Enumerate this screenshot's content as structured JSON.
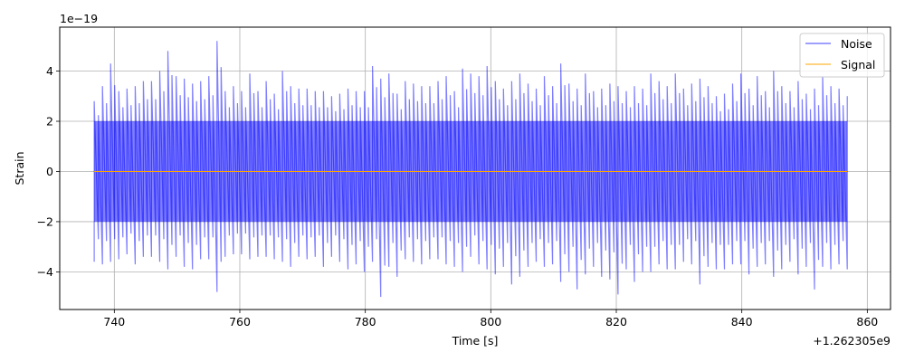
{
  "chart_data": {
    "type": "line",
    "xlabel": "Time [s]",
    "ylabel": "Strain",
    "x_offset_label": "+1.262305e9",
    "y_scale_label": "1e−19",
    "x_ticks": [
      740,
      760,
      780,
      800,
      820,
      840,
      860
    ],
    "x_tick_labels": [
      "740",
      "760",
      "780",
      "800",
      "820",
      "840",
      "860"
    ],
    "y_ticks": [
      -4,
      -2,
      0,
      2,
      4
    ],
    "y_tick_labels": [
      "−4",
      "−2",
      "0",
      "2",
      "4"
    ],
    "xlim": [
      731.3,
      863.7
    ],
    "ylim": [
      -5.5,
      5.75
    ],
    "grid": true,
    "legend_position": "top-right",
    "series": [
      {
        "name": "Noise",
        "color": "#0000ff",
        "opacity": 0.5,
        "x_range": [
          736.8,
          856.8
        ],
        "envelope_max": [
          2.8,
          3.4,
          4.3,
          3.2,
          3.3,
          3.4,
          3.6,
          3.6,
          4.0,
          4.8,
          3.8,
          3.7,
          3.5,
          3.6,
          3.8,
          5.2,
          3.2,
          3.4,
          3.2,
          3.9,
          3.2,
          3.6,
          3.1,
          4.0,
          3.4,
          3.3,
          3.3,
          3.2,
          3.2,
          3.0,
          3.1,
          3.3,
          3.2,
          3.2,
          4.2,
          3.7,
          3.9,
          3.1,
          3.6,
          3.5,
          3.4,
          3.4,
          3.6,
          3.8,
          3.2,
          4.1,
          3.9,
          3.8,
          4.2,
          3.6,
          3.3,
          3.6,
          3.9,
          3.5,
          3.3,
          3.8,
          3.4,
          4.3,
          3.5,
          3.3,
          3.9,
          3.2,
          3.3,
          3.5,
          3.4,
          3.2,
          3.4,
          3.3,
          3.9,
          3.6,
          3.4,
          3.9,
          3.3,
          3.5,
          3.7,
          3.4,
          3.0,
          3.1,
          3.5,
          3.9,
          3.3,
          3.8,
          3.2,
          4.0,
          3.4,
          3.2,
          3.6,
          3.1,
          3.3,
          3.8,
          3.4,
          3.3,
          3.0
        ],
        "envelope_min": [
          -3.6,
          -3.7,
          -3.6,
          -3.5,
          -3.3,
          -3.7,
          -3.4,
          -3.4,
          -3.6,
          -3.9,
          -3.4,
          -3.8,
          -3.9,
          -3.5,
          -3.5,
          -4.8,
          -3.4,
          -3.3,
          -3.3,
          -3.5,
          -3.4,
          -3.4,
          -3.5,
          -3.6,
          -3.8,
          -3.4,
          -3.5,
          -3.4,
          -3.8,
          -3.4,
          -3.6,
          -3.9,
          -3.7,
          -4.0,
          -3.6,
          -5.0,
          -3.8,
          -4.2,
          -3.5,
          -3.6,
          -3.7,
          -3.5,
          -3.5,
          -3.7,
          -3.8,
          -4.0,
          -3.4,
          -3.7,
          -3.9,
          -4.1,
          -3.8,
          -4.5,
          -4.2,
          -3.8,
          -3.6,
          -3.8,
          -3.7,
          -4.4,
          -4.0,
          -4.7,
          -4.1,
          -3.8,
          -4.2,
          -4.3,
          -4.9,
          -3.9,
          -4.4,
          -4.0,
          -4.0,
          -3.7,
          -3.9,
          -3.9,
          -3.6,
          -3.7,
          -4.5,
          -3.8,
          -3.9,
          -3.9,
          -3.7,
          -3.7,
          -4.1,
          -3.8,
          -3.7,
          -4.2,
          -3.9,
          -3.6,
          -4.1,
          -3.8,
          -4.7,
          -3.8,
          -3.9,
          -3.7,
          -3.9
        ],
        "core_amplitude": 2.0
      },
      {
        "name": "Signal",
        "color": "#ffa500",
        "x_range": [
          736.8,
          856.8
        ],
        "value": 0
      }
    ]
  }
}
